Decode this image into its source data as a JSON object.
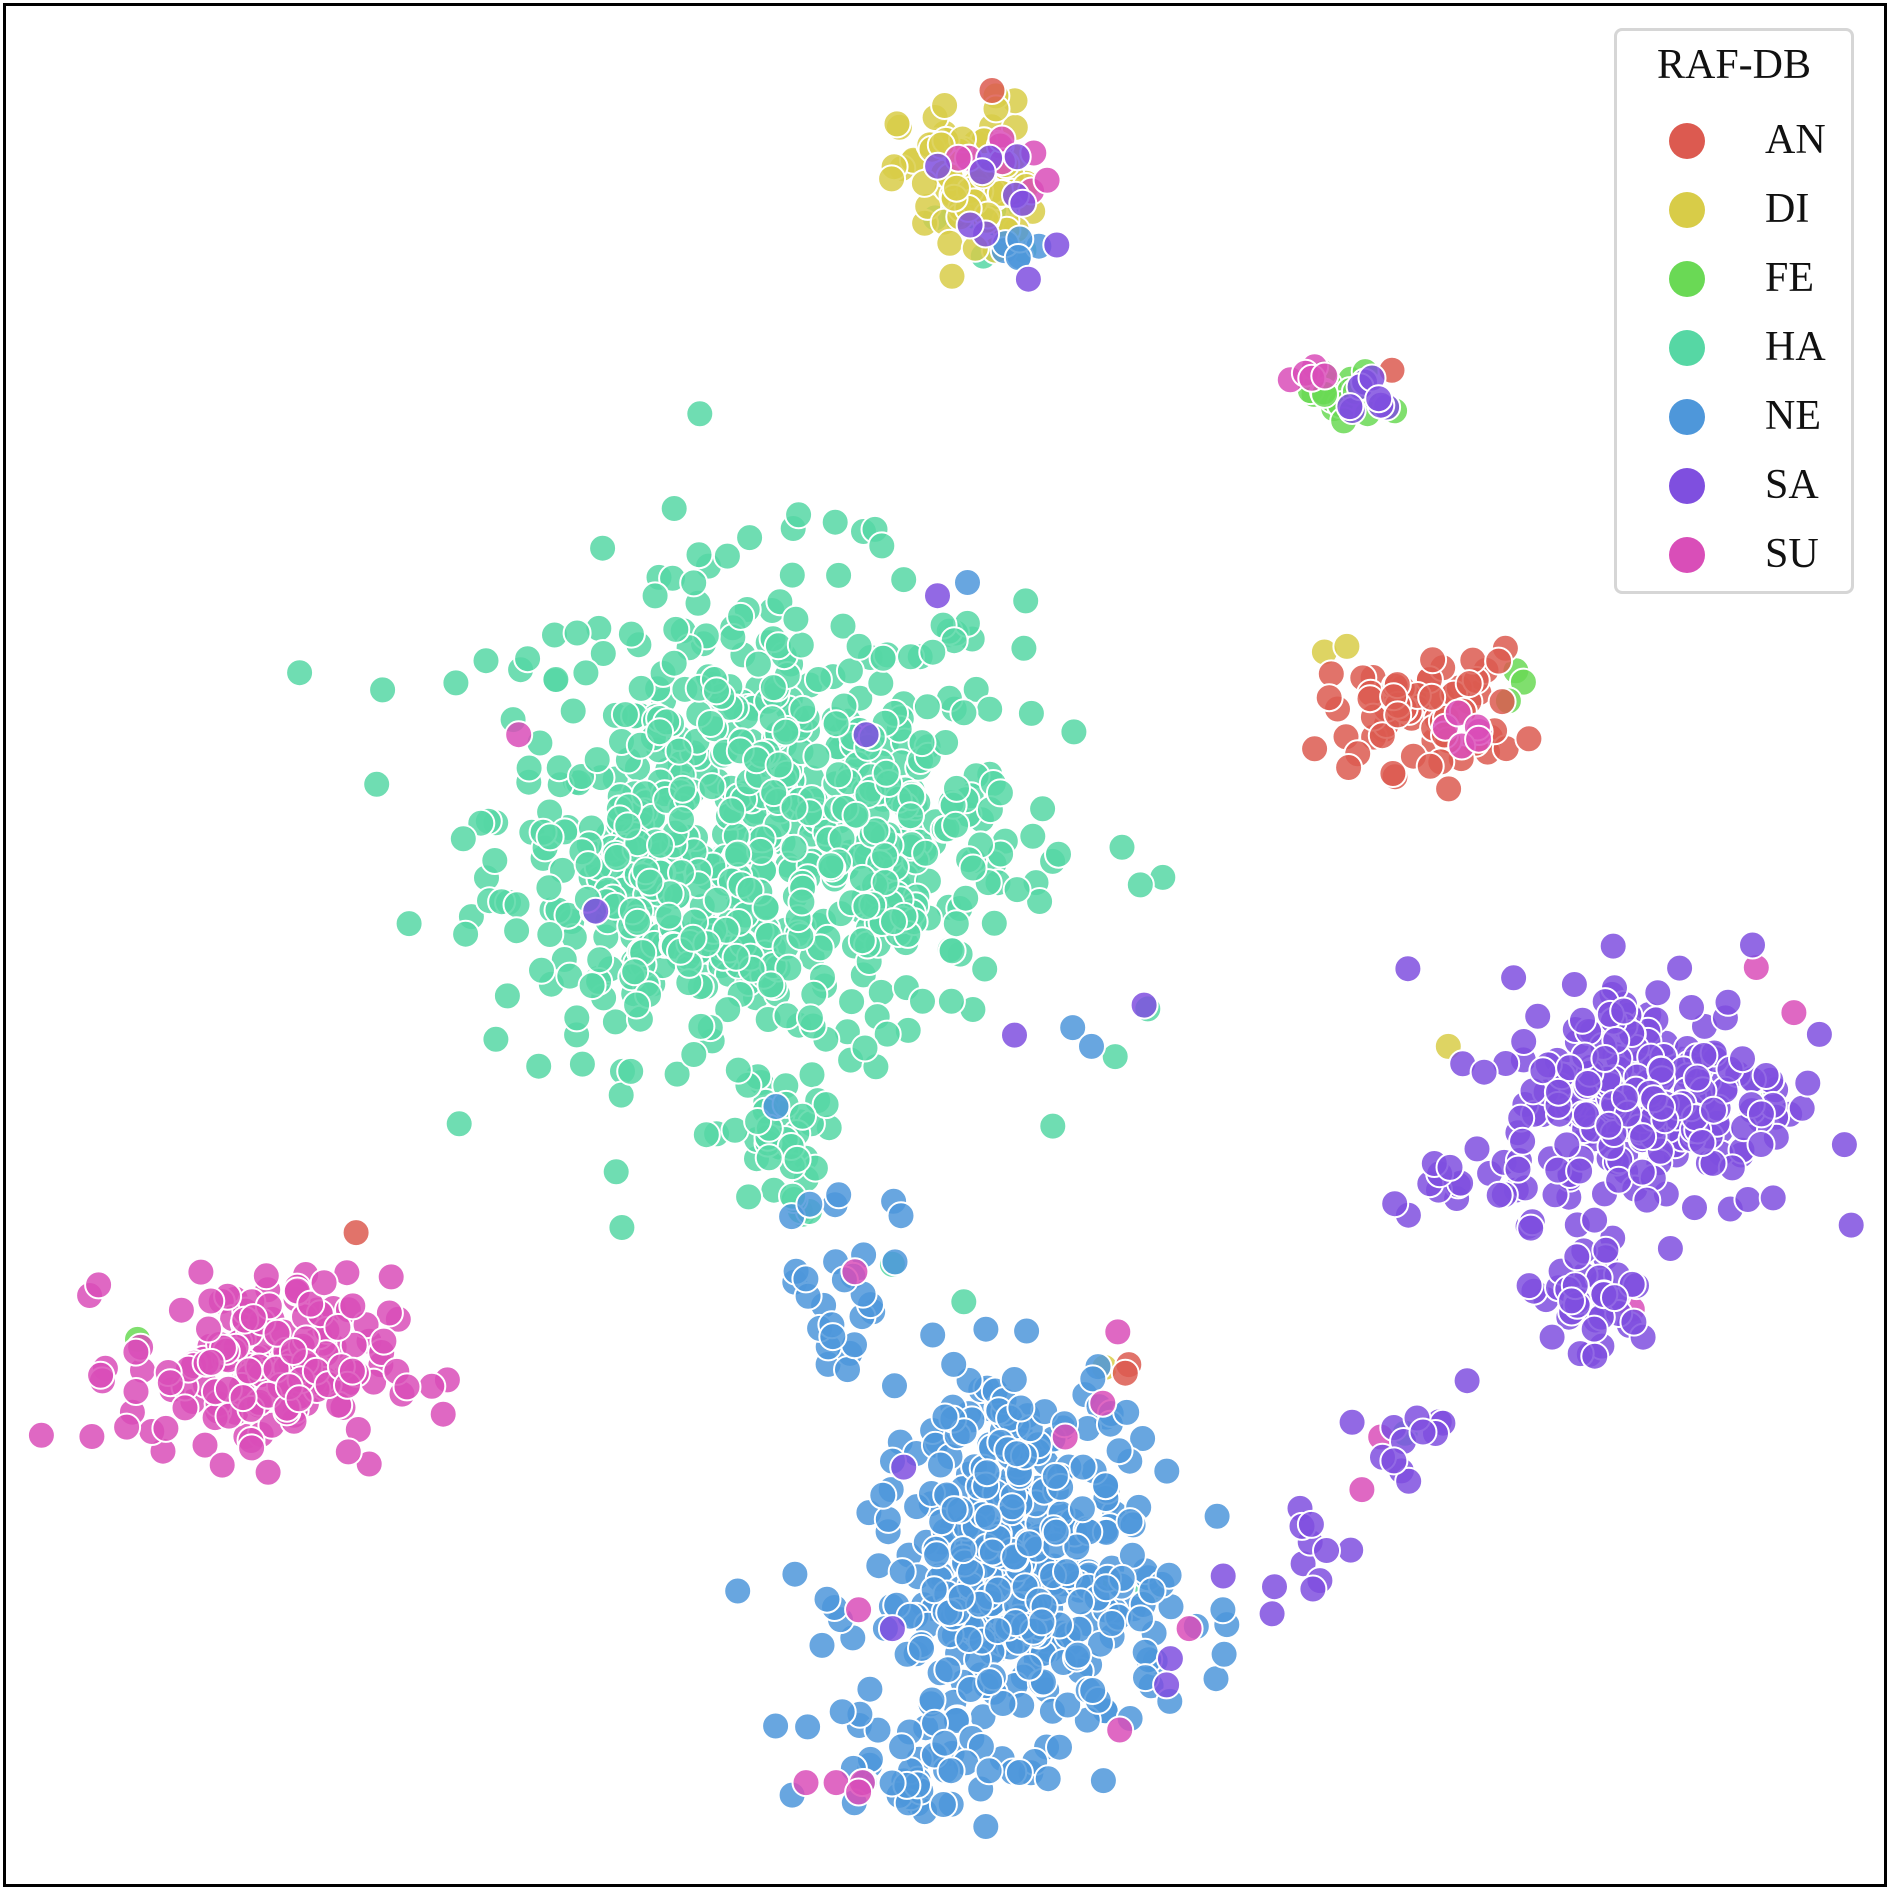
{
  "chart_data": {
    "type": "scatter",
    "title": "",
    "xlabel": "",
    "ylabel": "",
    "xlim": [
      0,
      100
    ],
    "ylim": [
      0,
      100
    ],
    "axes_visible": false,
    "grid": false,
    "legend": {
      "title": "RAF-DB",
      "placement": "top-right",
      "entries": [
        {
          "label": "AN",
          "color": "#dc5a50"
        },
        {
          "label": "DI",
          "color": "#d8cc48"
        },
        {
          "label": "FE",
          "color": "#6ad955"
        },
        {
          "label": "HA",
          "color": "#56d7a4"
        },
        {
          "label": "NE",
          "color": "#4e97da"
        },
        {
          "label": "SA",
          "color": "#7f4fdf"
        },
        {
          "label": "SU",
          "color": "#d94eb8"
        }
      ]
    },
    "series": [
      {
        "name": "AN",
        "color": "#dc5a50",
        "clusters": [
          {
            "center": [
              75.5,
              62.5
            ],
            "spread": [
              2.6,
              1.6
            ],
            "count": 70
          },
          {
            "center": [
              18.0,
              35.0
            ],
            "spread": [
              0.3,
              0.3
            ],
            "count": 1
          },
          {
            "center": [
              60.0,
              27.0
            ],
            "spread": [
              0.3,
              0.3
            ],
            "count": 1
          }
        ],
        "points": [
          [
            52.5,
            95.5
          ],
          [
            73.8,
            80.6
          ],
          [
            59.6,
            27.2
          ]
        ]
      },
      {
        "name": "DI",
        "color": "#d8cc48",
        "clusters": [
          {
            "center": [
              51.2,
              90.5
            ],
            "spread": [
              1.8,
              2.2
            ],
            "count": 70
          }
        ],
        "points": [
          [
            70.2,
            65.6
          ],
          [
            71.4,
            65.9
          ],
          [
            76.8,
            44.6
          ],
          [
            58.5,
            27.5
          ]
        ]
      },
      {
        "name": "FE",
        "color": "#6ad955",
        "clusters": [
          {
            "center": [
              71.2,
              79.2
            ],
            "spread": [
              1.2,
              0.8
            ],
            "count": 18
          }
        ],
        "points": [
          [
            80.4,
            64.6
          ],
          [
            80.8,
            64.0
          ],
          [
            80.0,
            63.0
          ],
          [
            58.5,
            16.2
          ],
          [
            93.5,
            42.6
          ],
          [
            7.0,
            29.0
          ]
        ]
      },
      {
        "name": "HA",
        "color": "#56d7a4",
        "clusters": [
          {
            "center": [
              40.0,
              57.0
            ],
            "spread": [
              7.0,
              6.5
            ],
            "count": 520
          },
          {
            "center": [
              34.5,
              52.0
            ],
            "spread": [
              3.5,
              3.5
            ],
            "count": 120
          },
          {
            "center": [
              46.5,
              54.5
            ],
            "spread": [
              4.0,
              3.5
            ],
            "count": 120
          },
          {
            "center": [
              41.0,
              39.5
            ],
            "spread": [
              1.2,
              2.0
            ],
            "count": 40
          },
          {
            "center": [
              52.2,
              88.8
            ],
            "spread": [
              1.4,
              1.4
            ],
            "count": 12
          }
        ],
        "points": [
          [
            27.0,
            62.0
          ],
          [
            54.2,
            65.8
          ],
          [
            61.6,
            53.6
          ],
          [
            60.4,
            53.2
          ],
          [
            60.8,
            46.6
          ],
          [
            48.8,
            47.0
          ],
          [
            47.2,
            33.0
          ],
          [
            51.0,
            31.0
          ],
          [
            60.8,
            15.6
          ],
          [
            70.6,
            79.6
          ],
          [
            74.5,
            24.0
          ]
        ]
      },
      {
        "name": "NE",
        "color": "#4e97da",
        "clusters": [
          {
            "center": [
              54.0,
              15.0
            ],
            "spread": [
              4.0,
              3.8
            ],
            "count": 330
          },
          {
            "center": [
              53.5,
              23.0
            ],
            "spread": [
              2.8,
              2.5
            ],
            "count": 90
          },
          {
            "center": [
              48.5,
              6.5
            ],
            "spread": [
              2.5,
              1.5
            ],
            "count": 35
          },
          {
            "center": [
              44.5,
              32.0
            ],
            "spread": [
              1.5,
              3.0
            ],
            "count": 28
          },
          {
            "center": [
              53.8,
              87.5
            ],
            "spread": [
              0.8,
              0.6
            ],
            "count": 6
          }
        ],
        "points": [
          [
            51.2,
            69.3
          ],
          [
            56.8,
            45.6
          ],
          [
            57.8,
            44.6
          ],
          [
            41.0,
            41.4
          ],
          [
            42.8,
            36.2
          ],
          [
            64.8,
            14.6
          ]
        ]
      },
      {
        "name": "SA",
        "color": "#7f4fdf",
        "clusters": [
          {
            "center": [
              87.5,
              42.0
            ],
            "spread": [
              3.8,
              3.2
            ],
            "count": 240
          },
          {
            "center": [
              84.0,
              31.0
            ],
            "spread": [
              2.0,
              1.8
            ],
            "count": 40
          },
          {
            "center": [
              78.0,
              38.0
            ],
            "spread": [
              2.2,
              1.0
            ],
            "count": 20
          },
          {
            "center": [
              74.2,
              23.5
            ],
            "spread": [
              1.2,
              1.5
            ],
            "count": 12
          },
          {
            "center": [
              69.0,
              18.0
            ],
            "spread": [
              1.5,
              1.2
            ],
            "count": 12
          },
          {
            "center": [
              53.0,
              89.0
            ],
            "spread": [
              1.4,
              1.6
            ],
            "count": 10
          },
          {
            "center": [
              72.5,
              79.2
            ],
            "spread": [
              0.9,
              0.6
            ],
            "count": 8
          }
        ],
        "points": [
          [
            49.6,
            68.6
          ],
          [
            45.8,
            61.2
          ],
          [
            31.4,
            51.8
          ],
          [
            53.7,
            45.2
          ],
          [
            60.6,
            46.8
          ],
          [
            77.8,
            26.8
          ],
          [
            47.8,
            22.2
          ],
          [
            47.2,
            13.6
          ],
          [
            62.0,
            12.0
          ],
          [
            61.8,
            10.6
          ],
          [
            93.0,
            50.0
          ]
        ]
      },
      {
        "name": "SU",
        "color": "#d94eb8",
        "clusters": [
          {
            "center": [
              13.5,
              27.5
            ],
            "spread": [
              3.5,
              2.4
            ],
            "count": 180
          },
          {
            "center": [
              53.0,
              91.0
            ],
            "spread": [
              1.4,
              1.2
            ],
            "count": 8
          },
          {
            "center": [
              69.5,
              80.4
            ],
            "spread": [
              0.7,
              0.3
            ],
            "count": 5
          },
          {
            "center": [
              77.8,
              61.8
            ],
            "spread": [
              0.8,
              0.5
            ],
            "count": 6
          }
        ],
        "points": [
          [
            27.3,
            61.2
          ],
          [
            45.2,
            32.6
          ],
          [
            93.2,
            48.8
          ],
          [
            95.2,
            46.4
          ],
          [
            86.6,
            30.6
          ],
          [
            73.2,
            23.8
          ],
          [
            72.2,
            21.0
          ],
          [
            56.4,
            23.8
          ],
          [
            58.4,
            25.6
          ],
          [
            59.2,
            29.4
          ],
          [
            63.0,
            13.6
          ],
          [
            59.3,
            8.2
          ],
          [
            45.4,
            14.6
          ],
          [
            42.6,
            5.4
          ],
          [
            44.2,
            5.4
          ],
          [
            45.6,
            5.4
          ],
          [
            45.4,
            4.9
          ]
        ]
      }
    ]
  }
}
